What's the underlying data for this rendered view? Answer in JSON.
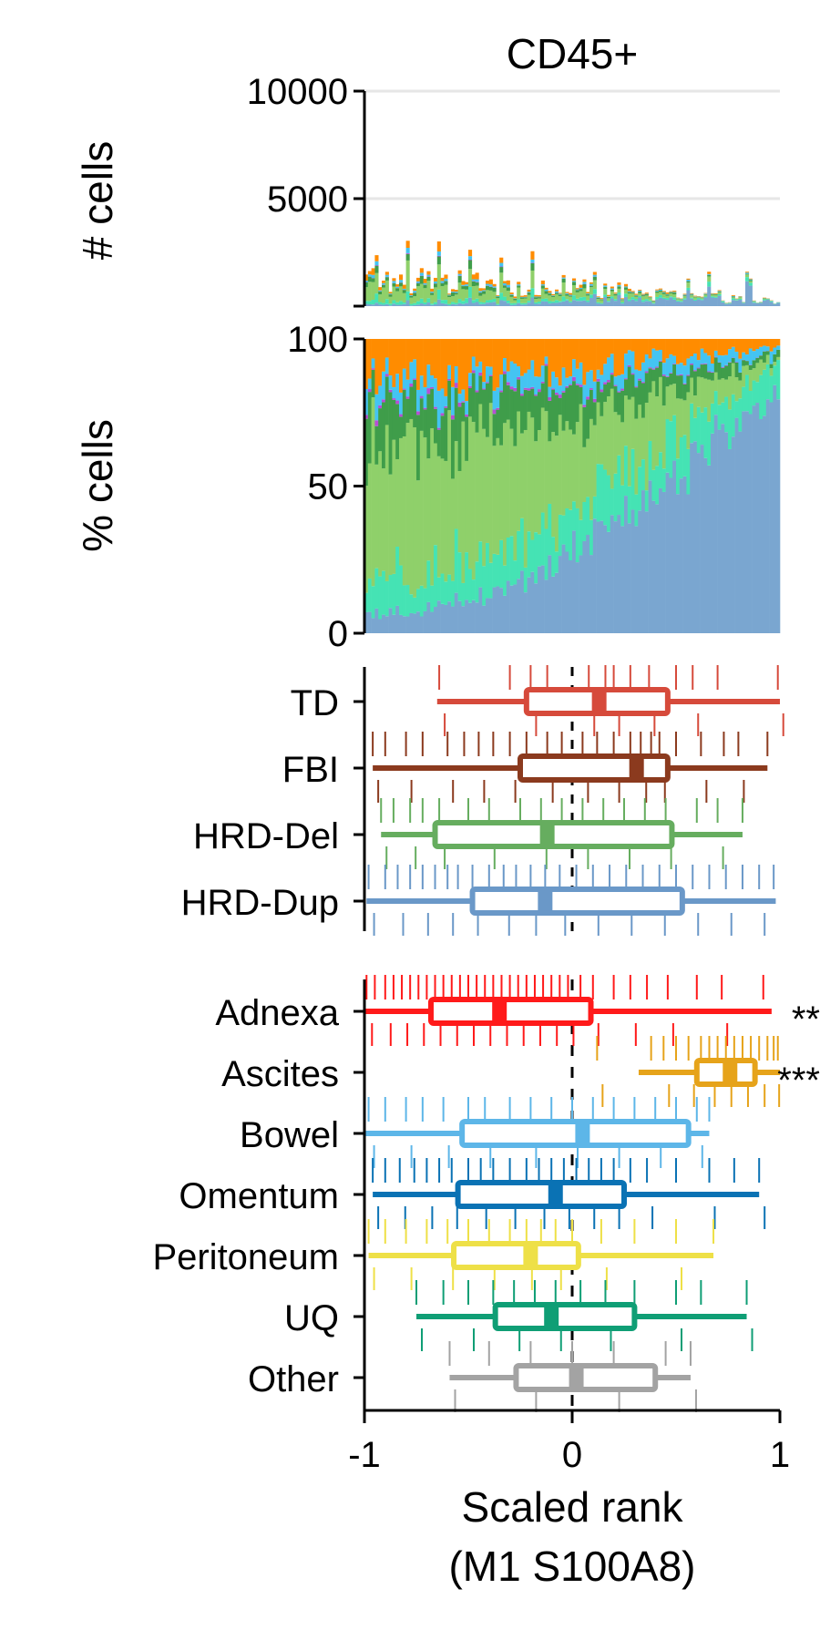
{
  "chart_data": [
    {
      "panel": "counts",
      "type": "bar",
      "stacked": true,
      "title": "CD45+",
      "ylabel": "# cells",
      "ylim": [
        0,
        10000
      ],
      "yticks": [
        5000,
        10000
      ],
      "yticklabels": [
        "5000",
        "10000"
      ],
      "grid": true,
      "n_samples": 120,
      "layer_colors": [
        "#7aa6d0",
        "#45e3b4",
        "#8fd06a",
        "#3f9d4a",
        "#b84fd6",
        "#44c4f2",
        "#ff8c00"
      ],
      "total_cells_description": "per-sample totals mostly 500-3300 cells, higher on the left, decreasing to the right",
      "peak_totals": [
        2400,
        3200,
        3300,
        3000,
        2700,
        3200,
        1900,
        2200,
        1500,
        1200,
        2100,
        1300
      ]
    },
    {
      "panel": "fractions",
      "type": "bar",
      "stacked": true,
      "ylabel": "% cells",
      "ylim": [
        0,
        100
      ],
      "yticks": [
        0,
        50,
        100
      ],
      "yticklabels": [
        "0",
        "50",
        "100"
      ],
      "series": [
        {
          "color": "#7aa6d0",
          "start_pct": 6,
          "end_pct": 80
        },
        {
          "color": "#45e3b4",
          "start_pct": 12,
          "end_pct": 10
        },
        {
          "color": "#8fd06a",
          "start_pct": 48,
          "end_pct": 2
        },
        {
          "color": "#3f9d4a",
          "start_pct": 14,
          "end_pct": 2
        },
        {
          "color": "#b84fd6",
          "start_pct": 1,
          "end_pct": 0
        },
        {
          "color": "#44c4f2",
          "start_pct": 6,
          "end_pct": 3
        },
        {
          "color": "#ff8c00",
          "start_pct": 13,
          "end_pct": 3
        }
      ]
    },
    {
      "panel": "mutational-signature",
      "type": "box",
      "xlim": [
        -1,
        1
      ],
      "reference_line": 0,
      "categories": [
        {
          "label": "TD",
          "color": "#d64a3b",
          "whisker": [
            -0.65,
            1.0
          ],
          "q1": -0.22,
          "median": 0.13,
          "q3": 0.46,
          "points": [
            -0.64,
            -0.3,
            -0.2,
            -0.12,
            0.08,
            0.16,
            0.2,
            0.28,
            0.37,
            0.5,
            0.58,
            0.7,
            0.99
          ]
        },
        {
          "label": "FBI",
          "color": "#8b3a1e",
          "whisker": [
            -0.96,
            0.94
          ],
          "q1": -0.25,
          "median": 0.31,
          "q3": 0.46,
          "points": [
            -0.96,
            -0.9,
            -0.8,
            -0.72,
            -0.6,
            -0.52,
            -0.45,
            -0.38,
            -0.3,
            -0.22,
            -0.12,
            -0.05,
            0.05,
            0.12,
            0.2,
            0.28,
            0.33,
            0.38,
            0.42,
            0.5,
            0.62,
            0.73,
            0.8,
            0.94
          ]
        },
        {
          "label": "HRD-Del",
          "color": "#66ad5f",
          "whisker": [
            -0.92,
            0.82
          ],
          "q1": -0.66,
          "median": -0.12,
          "q3": 0.48,
          "points": [
            -0.92,
            -0.86,
            -0.78,
            -0.72,
            -0.64,
            -0.5,
            -0.4,
            -0.25,
            -0.15,
            -0.05,
            0.05,
            0.15,
            0.25,
            0.35,
            0.45,
            0.6,
            0.7,
            0.82
          ]
        },
        {
          "label": "HRD-Dup",
          "color": "#6a98c8",
          "whisker": [
            -0.99,
            0.98
          ],
          "q1": -0.48,
          "median": -0.13,
          "q3": 0.53,
          "points": [
            -0.98,
            -0.9,
            -0.84,
            -0.78,
            -0.72,
            -0.66,
            -0.6,
            -0.55,
            -0.48,
            -0.4,
            -0.33,
            -0.27,
            -0.2,
            -0.13,
            -0.06,
            0.02,
            0.1,
            0.18,
            0.26,
            0.34,
            0.42,
            0.5,
            0.58,
            0.66,
            0.74,
            0.82,
            0.9,
            0.97
          ]
        }
      ]
    },
    {
      "panel": "tumor-site",
      "type": "box",
      "xlim": [
        -1,
        1
      ],
      "xticks": [
        -1,
        0,
        1
      ],
      "xticklabels": [
        "-1",
        "0",
        "1"
      ],
      "xlabel": [
        "Scaled rank",
        "(M1 S100A8)"
      ],
      "reference_line": 0,
      "categories": [
        {
          "label": "Adnexa",
          "color": "#ff1a1a",
          "whisker": [
            -1.0,
            0.96
          ],
          "q1": -0.68,
          "median": -0.35,
          "q3": 0.09,
          "significance": "**",
          "points": [
            -0.99,
            -0.95,
            -0.9,
            -0.86,
            -0.82,
            -0.78,
            -0.74,
            -0.7,
            -0.66,
            -0.62,
            -0.58,
            -0.54,
            -0.5,
            -0.46,
            -0.42,
            -0.38,
            -0.34,
            -0.3,
            -0.26,
            -0.22,
            -0.18,
            -0.14,
            -0.1,
            -0.06,
            -0.02,
            0.04,
            0.1,
            0.2,
            0.28,
            0.36,
            0.46,
            0.6,
            0.72,
            0.92
          ]
        },
        {
          "label": "Ascites",
          "color": "#e6a31a",
          "whisker": [
            0.32,
            1.0
          ],
          "q1": 0.6,
          "median": 0.76,
          "q3": 0.88,
          "significance": "***",
          "points": [
            0.12,
            0.38,
            0.44,
            0.5,
            0.56,
            0.62,
            0.66,
            0.7,
            0.74,
            0.78,
            0.82,
            0.86,
            0.9,
            0.94,
            0.97,
            0.99
          ]
        },
        {
          "label": "Bowel",
          "color": "#5db6e8",
          "whisker": [
            -1.0,
            0.66
          ],
          "q1": -0.53,
          "median": 0.05,
          "q3": 0.56,
          "points": [
            -0.98,
            -0.9,
            -0.8,
            -0.72,
            -0.62,
            -0.5,
            -0.42,
            -0.3,
            -0.2,
            -0.1,
            0.0,
            0.1,
            0.2,
            0.3,
            0.4,
            0.5,
            0.6,
            0.66
          ]
        },
        {
          "label": "Omentum",
          "color": "#0a72b4",
          "whisker": [
            -0.96,
            0.9
          ],
          "q1": -0.55,
          "median": -0.08,
          "q3": 0.25,
          "points": [
            -0.96,
            -0.9,
            -0.83,
            -0.76,
            -0.7,
            -0.64,
            -0.58,
            -0.5,
            -0.44,
            -0.38,
            -0.3,
            -0.22,
            -0.16,
            -0.1,
            -0.04,
            0.02,
            0.08,
            0.14,
            0.2,
            0.28,
            0.36,
            0.5,
            0.66,
            0.78,
            0.9
          ]
        },
        {
          "label": "Peritoneum",
          "color": "#eee047",
          "whisker": [
            -0.98,
            0.68
          ],
          "q1": -0.57,
          "median": -0.2,
          "q3": 0.03,
          "points": [
            -0.98,
            -0.9,
            -0.8,
            -0.7,
            -0.6,
            -0.5,
            -0.4,
            -0.3,
            -0.22,
            -0.15,
            -0.08,
            0.0,
            0.14,
            0.3,
            0.5,
            0.68
          ]
        },
        {
          "label": "UQ",
          "color": "#0f9e75",
          "whisker": [
            -0.75,
            0.84
          ],
          "q1": -0.37,
          "median": -0.1,
          "q3": 0.3,
          "points": [
            -0.75,
            -0.62,
            -0.5,
            -0.38,
            -0.28,
            -0.18,
            -0.08,
            0.04,
            0.16,
            0.3,
            0.5,
            0.62,
            0.84
          ]
        },
        {
          "label": "Other",
          "color": "#a3a3a3",
          "whisker": [
            -0.59,
            0.57
          ],
          "q1": -0.27,
          "median": 0.02,
          "q3": 0.4,
          "points": [
            -0.59,
            -0.4,
            -0.2,
            0.0,
            0.2,
            0.45,
            0.57
          ]
        }
      ]
    }
  ]
}
